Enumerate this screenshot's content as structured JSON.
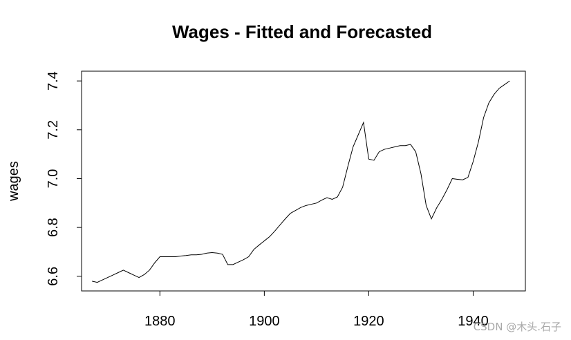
{
  "chart_data": {
    "type": "line",
    "title": "Wages - Fitted and Forecasted",
    "xlabel": "",
    "ylabel": "wages",
    "xlim": [
      1865,
      1950
    ],
    "ylim": [
      6.54,
      7.44
    ],
    "xticks": [
      1880,
      1900,
      1920,
      1940
    ],
    "yticks": [
      6.6,
      6.8,
      7.0,
      7.2,
      7.4
    ],
    "grid": false,
    "legend": "none",
    "series": [
      {
        "points": [
          [
            1867,
            6.58
          ],
          [
            1868,
            6.575
          ],
          [
            1869,
            6.585
          ],
          [
            1870,
            6.595
          ],
          [
            1871,
            6.605
          ],
          [
            1872,
            6.615
          ],
          [
            1873,
            6.625
          ],
          [
            1874,
            6.615
          ],
          [
            1875,
            6.605
          ],
          [
            1876,
            6.595
          ],
          [
            1877,
            6.607
          ],
          [
            1878,
            6.625
          ],
          [
            1879,
            6.655
          ],
          [
            1880,
            6.68
          ],
          [
            1881,
            6.68
          ],
          [
            1882,
            6.68
          ],
          [
            1883,
            6.68
          ],
          [
            1884,
            6.683
          ],
          [
            1885,
            6.685
          ],
          [
            1886,
            6.688
          ],
          [
            1887,
            6.688
          ],
          [
            1888,
            6.69
          ],
          [
            1889,
            6.695
          ],
          [
            1890,
            6.697
          ],
          [
            1891,
            6.695
          ],
          [
            1892,
            6.69
          ],
          [
            1893,
            6.648
          ],
          [
            1894,
            6.648
          ],
          [
            1895,
            6.658
          ],
          [
            1896,
            6.668
          ],
          [
            1897,
            6.68
          ],
          [
            1898,
            6.71
          ],
          [
            1899,
            6.728
          ],
          [
            1900,
            6.745
          ],
          [
            1901,
            6.762
          ],
          [
            1902,
            6.785
          ],
          [
            1903,
            6.81
          ],
          [
            1904,
            6.835
          ],
          [
            1905,
            6.858
          ],
          [
            1906,
            6.87
          ],
          [
            1907,
            6.882
          ],
          [
            1908,
            6.89
          ],
          [
            1909,
            6.895
          ],
          [
            1910,
            6.9
          ],
          [
            1911,
            6.912
          ],
          [
            1912,
            6.922
          ],
          [
            1913,
            6.915
          ],
          [
            1914,
            6.925
          ],
          [
            1915,
            6.965
          ],
          [
            1916,
            7.05
          ],
          [
            1917,
            7.13
          ],
          [
            1918,
            7.18
          ],
          [
            1919,
            7.23
          ],
          [
            1920,
            7.08
          ],
          [
            1921,
            7.075
          ],
          [
            1922,
            7.11
          ],
          [
            1923,
            7.12
          ],
          [
            1924,
            7.125
          ],
          [
            1925,
            7.13
          ],
          [
            1926,
            7.135
          ],
          [
            1927,
            7.135
          ],
          [
            1928,
            7.14
          ],
          [
            1929,
            7.11
          ],
          [
            1930,
            7.02
          ],
          [
            1931,
            6.89
          ],
          [
            1932,
            6.835
          ],
          [
            1933,
            6.88
          ],
          [
            1934,
            6.915
          ],
          [
            1935,
            6.955
          ],
          [
            1936,
            7.0
          ],
          [
            1937,
            6.997
          ],
          [
            1938,
            6.995
          ],
          [
            1939,
            7.005
          ],
          [
            1940,
            7.07
          ],
          [
            1941,
            7.15
          ],
          [
            1942,
            7.25
          ],
          [
            1943,
            7.31
          ],
          [
            1944,
            7.345
          ],
          [
            1945,
            7.37
          ],
          [
            1946,
            7.385
          ],
          [
            1947,
            7.4
          ]
        ]
      }
    ]
  },
  "watermark": {
    "text": "CSDN @木头.石子"
  }
}
